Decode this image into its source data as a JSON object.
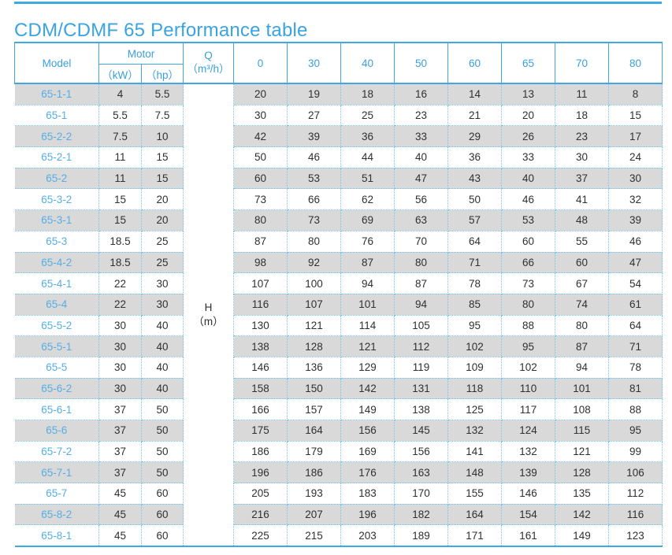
{
  "page": {
    "title": "CDM/CDMF 65 Performance table"
  },
  "table": {
    "header": {
      "model": "Model",
      "motor": "Motor",
      "kw": "（kW）",
      "hp": "（hp）",
      "q_line1": "Q",
      "q_line2": "（m³/h）",
      "flow_headers": [
        "0",
        "30",
        "40",
        "50",
        "60",
        "65",
        "70",
        "80"
      ]
    },
    "h_label": {
      "line1": "H",
      "line2": "（m）"
    },
    "rows": [
      {
        "model": "65-1-1",
        "kw": "4",
        "hp": "5.5",
        "values": [
          20,
          19,
          18,
          16,
          14,
          13,
          11,
          8
        ]
      },
      {
        "model": "65-1",
        "kw": "5.5",
        "hp": "7.5",
        "values": [
          30,
          27,
          25,
          23,
          21,
          20,
          18,
          15
        ]
      },
      {
        "model": "65-2-2",
        "kw": "7.5",
        "hp": "10",
        "values": [
          42,
          39,
          36,
          33,
          29,
          26,
          23,
          17
        ]
      },
      {
        "model": "65-2-1",
        "kw": "11",
        "hp": "15",
        "values": [
          50,
          46,
          44,
          40,
          36,
          33,
          30,
          24
        ]
      },
      {
        "model": "65-2",
        "kw": "11",
        "hp": "15",
        "values": [
          60,
          53,
          51,
          47,
          43,
          40,
          37,
          30
        ]
      },
      {
        "model": "65-3-2",
        "kw": "15",
        "hp": "20",
        "values": [
          73,
          66,
          62,
          56,
          50,
          46,
          41,
          32
        ]
      },
      {
        "model": "65-3-1",
        "kw": "15",
        "hp": "20",
        "values": [
          80,
          73,
          69,
          63,
          57,
          53,
          48,
          39
        ]
      },
      {
        "model": "65-3",
        "kw": "18.5",
        "hp": "25",
        "values": [
          87,
          80,
          76,
          70,
          64,
          60,
          55,
          46
        ]
      },
      {
        "model": "65-4-2",
        "kw": "18.5",
        "hp": "25",
        "values": [
          98,
          92,
          87,
          80,
          71,
          66,
          60,
          47
        ]
      },
      {
        "model": "65-4-1",
        "kw": "22",
        "hp": "30",
        "values": [
          107,
          100,
          94,
          87,
          78,
          73,
          67,
          54
        ]
      },
      {
        "model": "65-4",
        "kw": "22",
        "hp": "30",
        "values": [
          116,
          107,
          101,
          94,
          85,
          80,
          74,
          61
        ]
      },
      {
        "model": "65-5-2",
        "kw": "30",
        "hp": "40",
        "values": [
          130,
          121,
          114,
          105,
          95,
          88,
          80,
          64
        ]
      },
      {
        "model": "65-5-1",
        "kw": "30",
        "hp": "40",
        "values": [
          138,
          128,
          121,
          112,
          102,
          95,
          87,
          71
        ]
      },
      {
        "model": "65-5",
        "kw": "30",
        "hp": "40",
        "values": [
          146,
          136,
          129,
          119,
          109,
          102,
          94,
          78
        ]
      },
      {
        "model": "65-6-2",
        "kw": "30",
        "hp": "40",
        "values": [
          158,
          150,
          142,
          131,
          118,
          110,
          101,
          81
        ]
      },
      {
        "model": "65-6-1",
        "kw": "37",
        "hp": "50",
        "values": [
          166,
          157,
          149,
          138,
          125,
          117,
          108,
          88
        ]
      },
      {
        "model": "65-6",
        "kw": "37",
        "hp": "50",
        "values": [
          175,
          164,
          156,
          145,
          132,
          124,
          115,
          95
        ]
      },
      {
        "model": "65-7-2",
        "kw": "37",
        "hp": "50",
        "values": [
          186,
          179,
          169,
          156,
          141,
          132,
          121,
          99
        ]
      },
      {
        "model": "65-7-1",
        "kw": "37",
        "hp": "50",
        "values": [
          196,
          186,
          176,
          163,
          148,
          139,
          128,
          106
        ]
      },
      {
        "model": "65-7",
        "kw": "45",
        "hp": "60",
        "values": [
          205,
          193,
          183,
          170,
          155,
          146,
          135,
          112
        ]
      },
      {
        "model": "65-8-2",
        "kw": "45",
        "hp": "60",
        "values": [
          216,
          207,
          196,
          182,
          164,
          154,
          142,
          116
        ]
      },
      {
        "model": "65-8-1",
        "kw": "45",
        "hp": "60",
        "values": [
          225,
          215,
          203,
          189,
          171,
          161,
          149,
          123
        ]
      }
    ]
  },
  "colors": {
    "accent_blue": "#3fa9e1",
    "header_text_blue": "#3aa0dd",
    "model_text_blue": "#55aee6",
    "dotted_grid_blue": "#6fc4ed",
    "stripe_gray": "#d9d9d9",
    "data_text": "#303030"
  }
}
